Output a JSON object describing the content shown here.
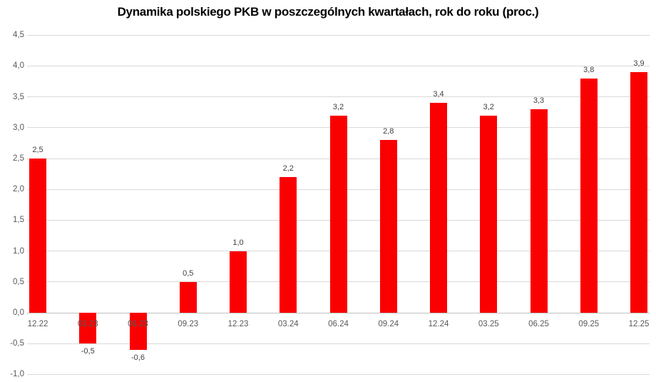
{
  "chart_data": {
    "type": "bar",
    "title": "Dynamika polskiego PKB w poszczególnych kwartałach, rok do roku (proc.)",
    "xlabel": "",
    "ylabel": "",
    "categories": [
      "12.22",
      "03.23",
      "06.23",
      "09.23",
      "12.23",
      "03.24",
      "06.24",
      "09.24",
      "12.24",
      "03.25",
      "06.25",
      "09.25",
      "12.25"
    ],
    "values": [
      2.5,
      -0.5,
      -0.6,
      0.5,
      1.0,
      2.2,
      3.2,
      2.8,
      3.4,
      3.2,
      3.3,
      3.8,
      3.9
    ],
    "value_labels": [
      "2,5",
      "-0,5",
      "-0,6",
      "0,5",
      "1,0",
      "2,2",
      "3,2",
      "2,8",
      "3,4",
      "3,2",
      "3,3",
      "3,8",
      "3,9"
    ],
    "ylim": [
      -1.0,
      4.5
    ],
    "ytick_step": 0.5,
    "yticks": [
      4.5,
      4.0,
      3.5,
      3.0,
      2.5,
      2.0,
      1.5,
      1.0,
      0.5,
      0.0,
      -0.5,
      -1.0
    ],
    "ytick_labels": [
      "4,5",
      "4,0",
      "3,5",
      "3,0",
      "2,5",
      "2,0",
      "1,5",
      "1,0",
      "0,5",
      "0,0",
      "-0,5",
      "-1,0"
    ],
    "grid": true,
    "legend": false,
    "colors": {
      "bar": "#FA0000",
      "gridline": "#D9D9D9",
      "zero_line": "#C0C0C0",
      "axis_text": "#595959",
      "value_label_text": "#404040",
      "title_text": "#000000",
      "background": "#FFFFFF"
    }
  }
}
